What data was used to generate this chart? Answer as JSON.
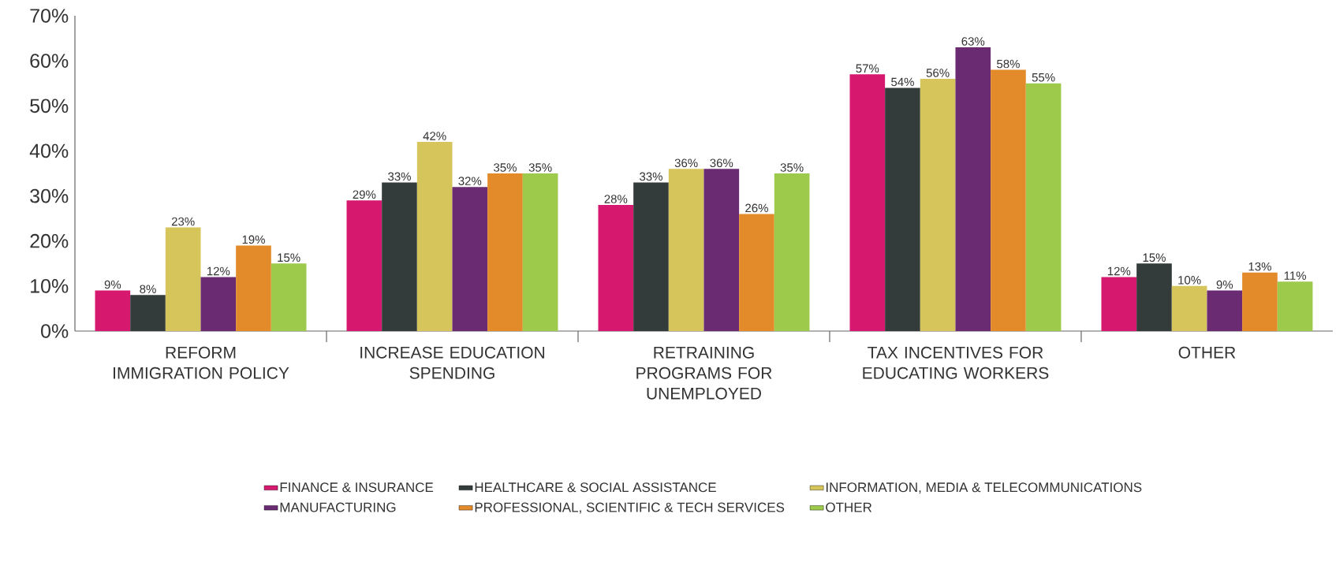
{
  "chart_data": {
    "type": "bar",
    "categories": [
      "REFORM IMMIGRATION POLICY",
      "INCREASE EDUCATION SPENDING",
      "RETRAINING PROGRAMS FOR UNEMPLOYED",
      "TAX INCENTIVES FOR EDUCATING WORKERS",
      "OTHER"
    ],
    "series": [
      {
        "name": "FINANCE & INSURANCE",
        "color": "#d6186f",
        "values": [
          9,
          29,
          28,
          57,
          12
        ],
        "value_labels": [
          "9%",
          "29%",
          "28%",
          "57%",
          "12%"
        ]
      },
      {
        "name": "HEALTHCARE & SOCIAL ASSISTANCE",
        "color": "#343b3b",
        "values": [
          8,
          33,
          33,
          54,
          15
        ],
        "value_labels": [
          "8%",
          "33%",
          "33%",
          "54%",
          "15%"
        ]
      },
      {
        "name": "INFORMATION, MEDIA & TELECOMMUNICATIONS",
        "color": "#d5c55a",
        "values": [
          23,
          42,
          36,
          56,
          10
        ],
        "value_labels": [
          "23%",
          "42%",
          "36%",
          "56%",
          "10%"
        ]
      },
      {
        "name": "MANUFACTURING",
        "color": "#6a2b73",
        "values": [
          12,
          32,
          36,
          63,
          9
        ],
        "value_labels": [
          "12%",
          "32%",
          "36%",
          "63%",
          "9%"
        ]
      },
      {
        "name": "PROFESSIONAL, SCIENTIFIC & TECH SERVICES",
        "color": "#e38b2b",
        "values": [
          19,
          35,
          26,
          58,
          13
        ],
        "value_labels": [
          "19%",
          "35%",
          "26%",
          "58%",
          "13%"
        ]
      },
      {
        "name": "OTHER",
        "color": "#9dca4b",
        "values": [
          15,
          35,
          35,
          55,
          11
        ],
        "value_labels": [
          "15%",
          "35%",
          "35%",
          "55%",
          "11%"
        ]
      }
    ],
    "ylim": [
      0,
      70
    ],
    "yticks": [
      {
        "value": 0,
        "label": "0%"
      },
      {
        "value": 10,
        "label": "10%"
      },
      {
        "value": 20,
        "label": "20%"
      },
      {
        "value": 30,
        "label": "30%"
      },
      {
        "value": 40,
        "label": "40%"
      },
      {
        "value": 50,
        "label": "50%"
      },
      {
        "value": 60,
        "label": "60%"
      },
      {
        "value": 70,
        "label": "70%"
      }
    ],
    "grid": false,
    "legend": "bottom"
  }
}
